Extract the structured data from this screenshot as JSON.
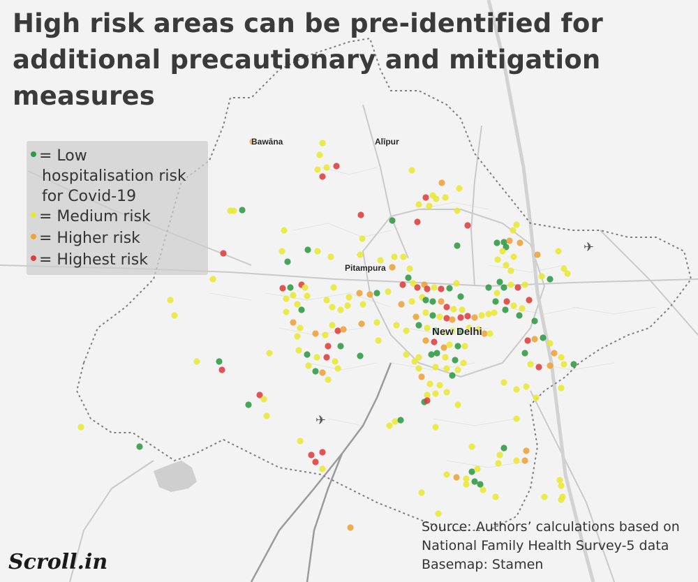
{
  "title": "High risk areas can be pre-identified for additional precautionary and mitigation measures",
  "legend": [
    {
      "label": "= Low hospitalisation risk for Covid-19",
      "lines": [
        "= Low",
        "hospitalisation risk",
        "for Covid-19"
      ],
      "color": "#2e9a43"
    },
    {
      "label": "= Medium risk",
      "color": "#e8e836"
    },
    {
      "label": "= Higher risk",
      "color": "#eda23a"
    },
    {
      "label": "= Highest risk",
      "color": "#de3d3d"
    }
  ],
  "places": {
    "bawana": "Bawāna",
    "alipur": "Alīpur",
    "pitampura": "Pitampura",
    "new_delhi": "New Delhi"
  },
  "airport_icon": "airplane-icon",
  "source_lines": [
    "Source:  Authors’ calculations based on",
    "National Family Health Survey-5 data",
    "Basemap: Stamen"
  ],
  "brand": "Scroll.in",
  "colors": {
    "low": "#2e9a43",
    "medium": "#e8e836",
    "higher": "#eda23a",
    "highest": "#de3d3d",
    "title": "#3a3a3a",
    "legend_bg": "#cdcdcd"
  }
}
